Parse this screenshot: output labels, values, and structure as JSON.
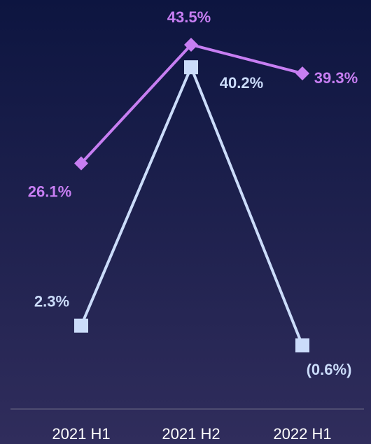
{
  "chart_data": {
    "type": "line",
    "categories": [
      "2021 H1",
      "2021 H2",
      "2022 H1"
    ],
    "series": [
      {
        "color": "#c77ef2",
        "marker": "diamond",
        "values": [
          26.1,
          43.5,
          39.3
        ],
        "value_labels": [
          "26.1%",
          "43.5%",
          "39.3%"
        ]
      },
      {
        "color": "#cbdcfa",
        "marker": "square",
        "values": [
          2.3,
          40.2,
          -0.6
        ],
        "value_labels": [
          "2.3%",
          "40.2%",
          "(0.6%)"
        ]
      }
    ]
  }
}
